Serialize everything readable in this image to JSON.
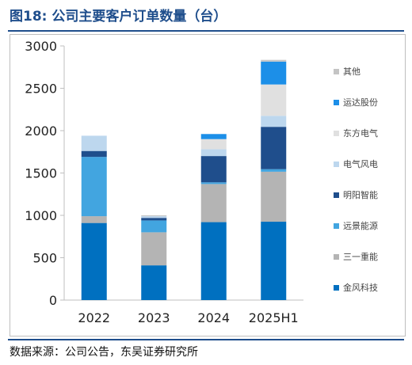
{
  "figure": {
    "title": "图18: 公司主要客户订单数量（台）",
    "source": "数据来源：公司公告，东吴证券研究所"
  },
  "chart_data": {
    "type": "bar",
    "stacked": true,
    "categories": [
      "2022",
      "2023",
      "2024",
      "2025H1"
    ],
    "ylim": [
      0,
      3000
    ],
    "yticks": [
      0,
      500,
      1000,
      1500,
      2000,
      2500,
      3000
    ],
    "grid": false,
    "legend_position": "right",
    "series": [
      {
        "name": "金风科技",
        "color": "#0070c0",
        "values": [
          910,
          410,
          920,
          925
        ]
      },
      {
        "name": "三一重能",
        "color": "#b4b4b4",
        "values": [
          80,
          390,
          450,
          590
        ]
      },
      {
        "name": "远景能源",
        "color": "#42a5e0",
        "values": [
          700,
          140,
          20,
          30
        ]
      },
      {
        "name": "明阳智能",
        "color": "#1f4e8c",
        "values": [
          70,
          30,
          310,
          500
        ]
      },
      {
        "name": "电气风电",
        "color": "#bdd7ee",
        "values": [
          180,
          20,
          80,
          130
        ]
      },
      {
        "name": "东方电气",
        "color": "#e0e0e0",
        "values": [
          0,
          0,
          120,
          370
        ]
      },
      {
        "name": "运达股份",
        "color": "#1c8fe8",
        "values": [
          0,
          0,
          60,
          270
        ]
      },
      {
        "name": "其他",
        "color": "#c4c4c4",
        "values": [
          0,
          10,
          0,
          20
        ]
      }
    ]
  }
}
